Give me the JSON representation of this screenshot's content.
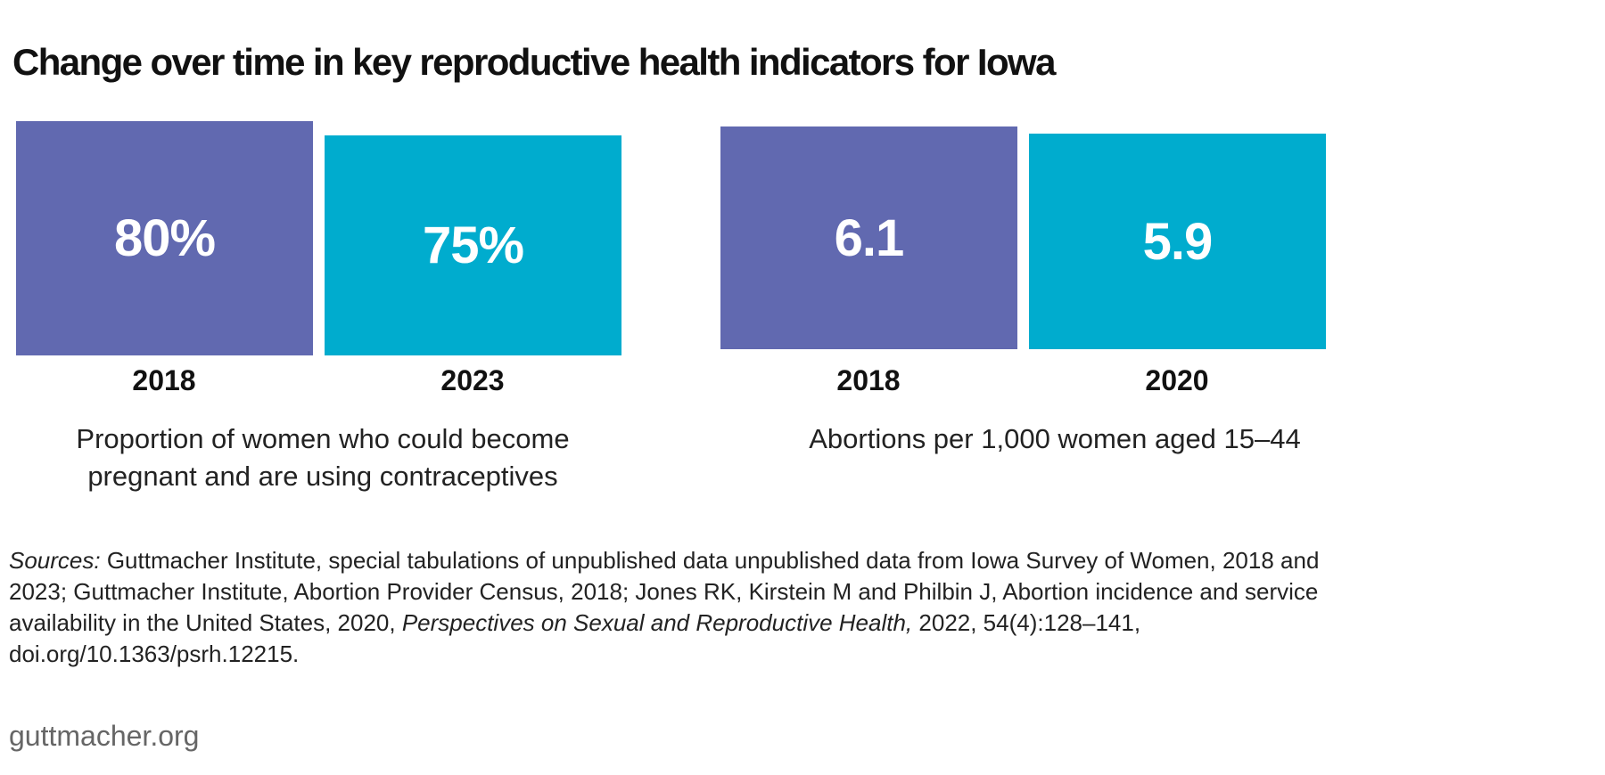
{
  "title": "Change over time in key reproductive health indicators for Iowa",
  "colors": {
    "first_period": "#6169B0",
    "second_period": "#00ACCE"
  },
  "chart_data": [
    {
      "type": "bar",
      "categories": [
        "2018",
        "2023"
      ],
      "values": [
        80,
        75
      ],
      "value_labels": [
        "80%",
        "75%"
      ],
      "caption_lines": [
        "Proportion of women who could become",
        "pregnant and are using contraceptives"
      ]
    },
    {
      "type": "bar",
      "categories": [
        "2018",
        "2020"
      ],
      "values": [
        6.1,
        5.9
      ],
      "value_labels": [
        "6.1",
        "5.9"
      ],
      "caption_lines": [
        "Abortions per 1,000 women aged 15–44"
      ]
    }
  ],
  "sources": {
    "label": "Sources:",
    "text_1": " Guttmacher Institute, special tabulations of unpublished data unpublished data from Iowa Survey of Women, 2018 and 2023; Guttmacher Institute, Abortion Provider Census, 2018; Jones RK, Kirstein M and Philbin J, Abortion incidence and service availability in the United States, 2020, ",
    "journal": "Perspectives on Sexual and Reproductive Health,",
    "text_2": " 2022, 54(4):128–141, doi.org/10.1363/psrh.12215."
  },
  "footer": {
    "site": "guttmacher.org"
  }
}
